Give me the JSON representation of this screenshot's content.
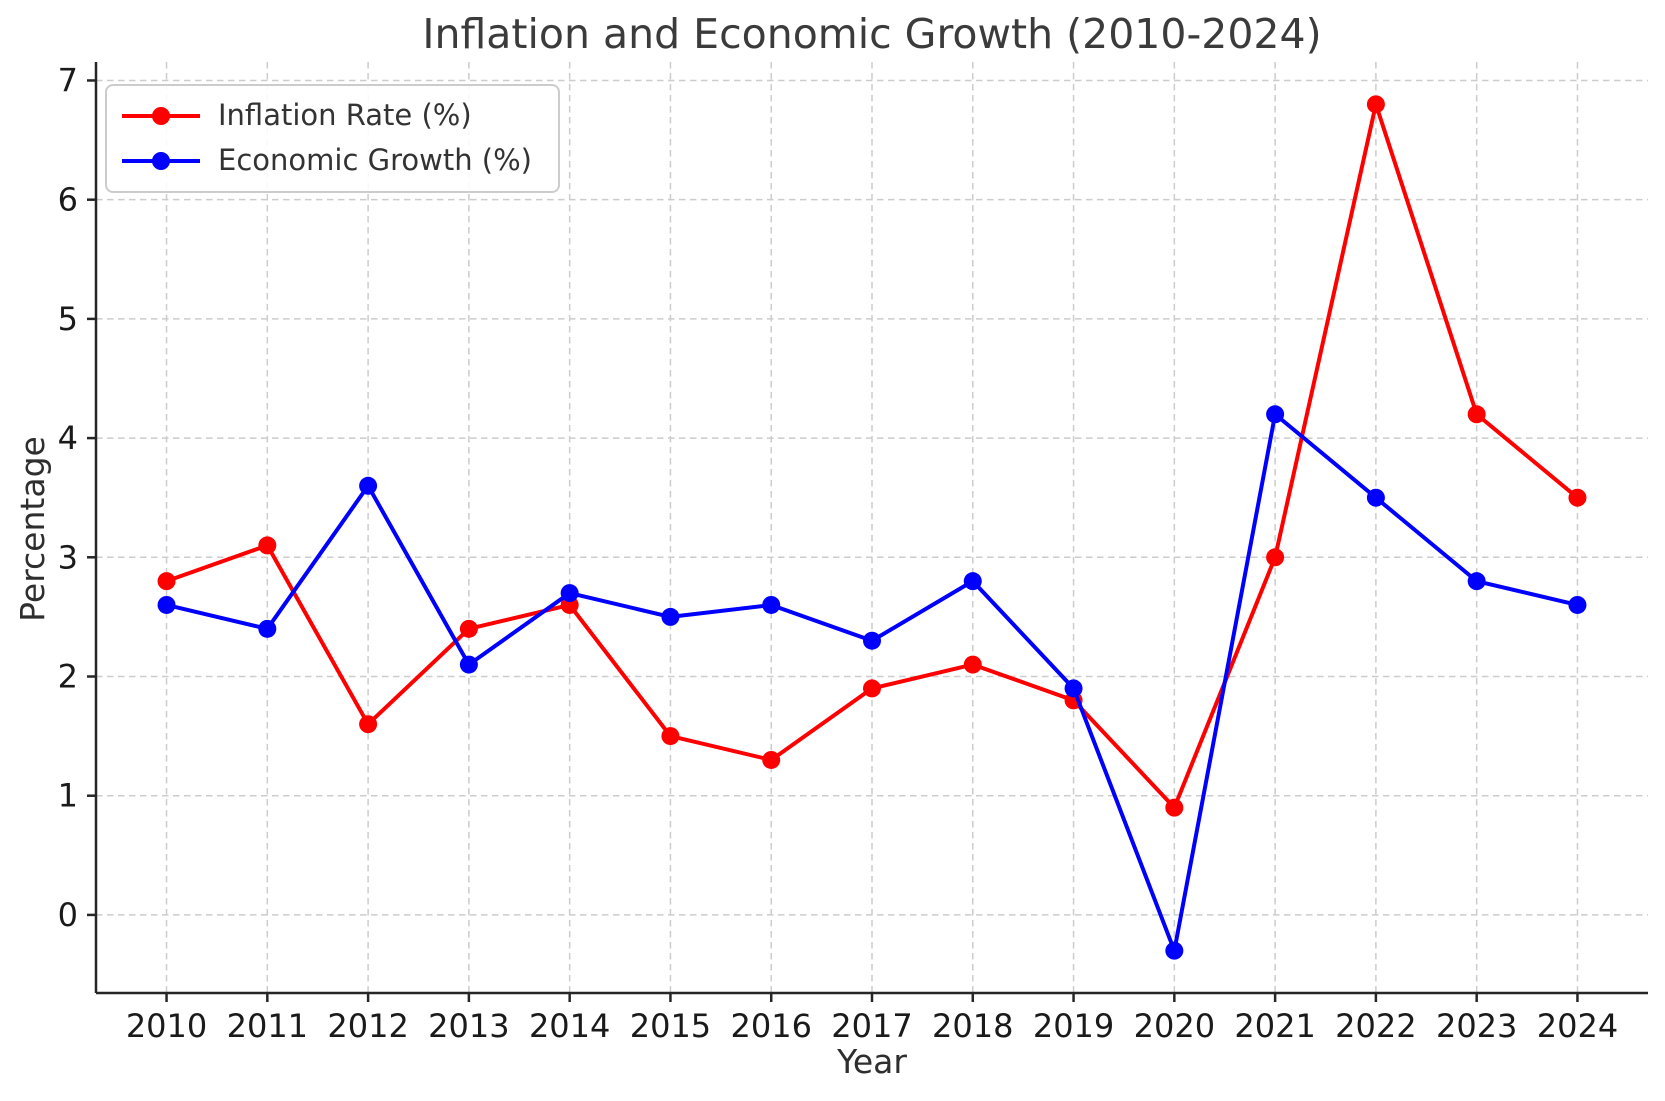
{
  "chart_data": {
    "type": "line",
    "title": "Inflation and Economic Growth (2010-2024)",
    "xlabel": "Year",
    "ylabel": "Percentage",
    "x": [
      2010,
      2011,
      2012,
      2013,
      2014,
      2015,
      2016,
      2017,
      2018,
      2019,
      2020,
      2021,
      2022,
      2023,
      2024
    ],
    "x_tick_labels": [
      "2010",
      "2011",
      "2012",
      "2013",
      "2014",
      "2015",
      "2016",
      "2017",
      "2018",
      "2019",
      "2020",
      "2021",
      "2022",
      "2023",
      "2024"
    ],
    "y_ticks": [
      0,
      1,
      2,
      3,
      4,
      5,
      6,
      7
    ],
    "y_tick_labels": [
      "0",
      "1",
      "2",
      "3",
      "4",
      "5",
      "6",
      "7"
    ],
    "xlim": [
      2009.3,
      2024.7
    ],
    "ylim": [
      -0.655,
      7.155
    ],
    "grid": true,
    "grid_style": "dashed",
    "legend_position": "upper-left",
    "series": [
      {
        "name": "Inflation Rate (%)",
        "color": "#ff0000",
        "marker": "circle",
        "values": [
          2.8,
          3.1,
          1.6,
          2.4,
          2.6,
          1.5,
          1.3,
          1.9,
          2.1,
          1.8,
          0.9,
          3.0,
          6.8,
          4.2,
          3.5
        ]
      },
      {
        "name": "Economic Growth (%)",
        "color": "#0000ff",
        "marker": "circle",
        "values": [
          2.6,
          2.4,
          3.6,
          2.1,
          2.7,
          2.5,
          2.6,
          2.3,
          2.8,
          1.9,
          -0.3,
          4.2,
          3.5,
          2.8,
          2.6
        ]
      }
    ]
  },
  "colors": {
    "background": "#ffffff",
    "grid": "#cccccc",
    "spine": "#262626",
    "tick_label": "#1a1a1a",
    "title": "#3b3b3b",
    "axis_label": "#2e2e2e",
    "legend_border": "#cccccc",
    "legend_text": "#333333"
  }
}
